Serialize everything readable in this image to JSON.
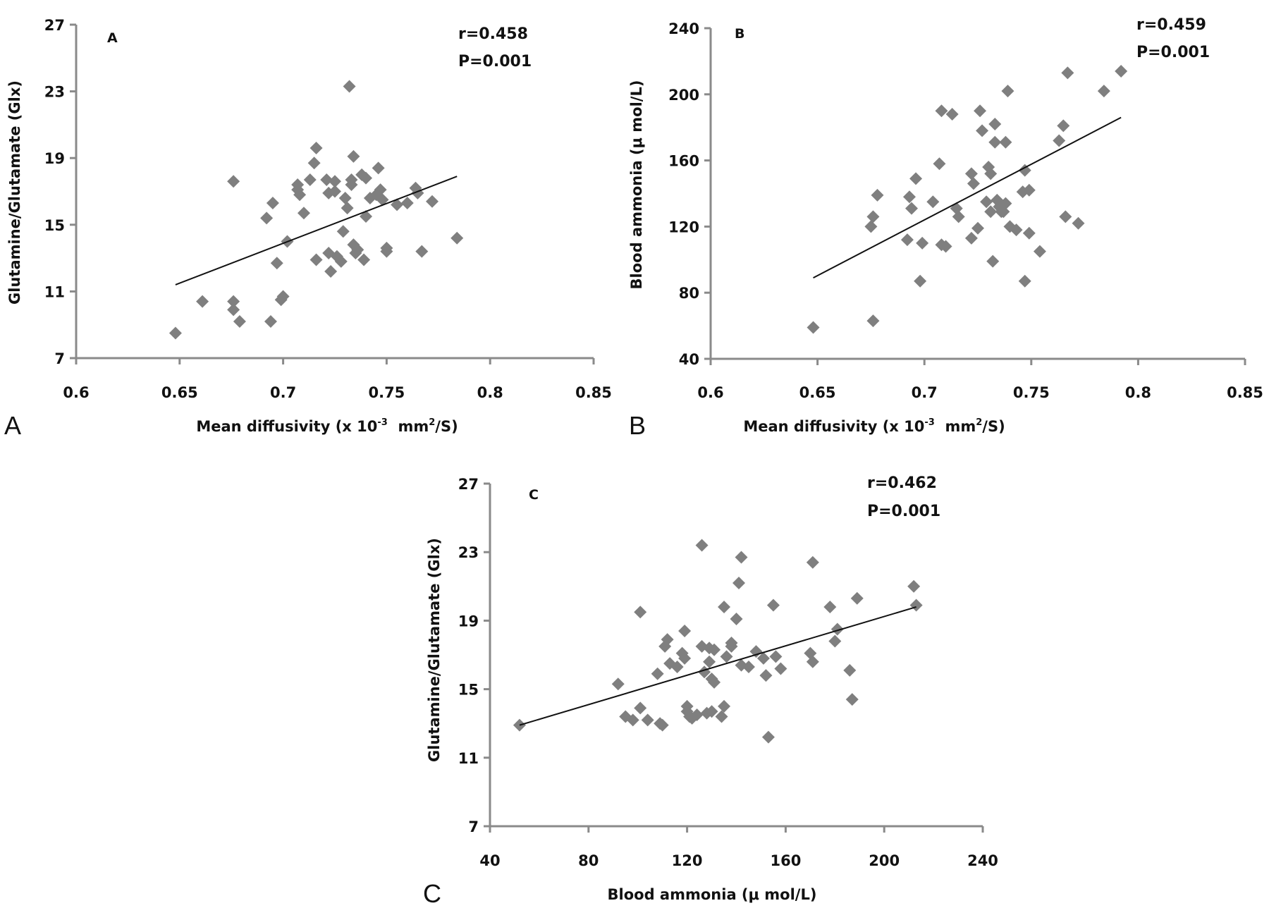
{
  "chart_data": [
    {
      "panel": "A",
      "type": "scatter",
      "inner_label": "A",
      "panel_label": "A",
      "stats": [
        "r=0.458",
        "P=0.001"
      ],
      "xlabel": "Mean diffusivity (x 10^-3 mm^2/S)",
      "xlabel_parts": {
        "base": "Mean diffusivity (x 10",
        "sup1": "-3",
        "mid": "  mm",
        "sup2": "2",
        "end": "/S)"
      },
      "ylabel": "Glutamine/Glutamate (Glx)",
      "xlim": [
        0.6,
        0.85
      ],
      "ylim": [
        7,
        27
      ],
      "xticks": [
        0.6,
        0.65,
        0.7,
        0.75,
        0.8,
        0.85
      ],
      "xtick_labels": [
        "0.6",
        "0.65",
        "0.7",
        "0.75",
        "0.8",
        "0.85"
      ],
      "yticks": [
        7,
        11,
        15,
        19,
        23,
        27
      ],
      "ytick_labels": [
        "7",
        "11",
        "15",
        "19",
        "23",
        "27"
      ],
      "grid": false,
      "trendline": {
        "x": [
          0.648,
          0.784
        ],
        "y": [
          11.4,
          17.9
        ]
      },
      "points": [
        [
          0.648,
          8.5
        ],
        [
          0.661,
          10.4
        ],
        [
          0.676,
          17.6
        ],
        [
          0.676,
          10.4
        ],
        [
          0.676,
          9.9
        ],
        [
          0.679,
          9.2
        ],
        [
          0.692,
          15.4
        ],
        [
          0.695,
          16.3
        ],
        [
          0.694,
          9.2
        ],
        [
          0.697,
          12.7
        ],
        [
          0.699,
          10.5
        ],
        [
          0.7,
          10.7
        ],
        [
          0.702,
          14.0
        ],
        [
          0.707,
          17.4
        ],
        [
          0.707,
          17.1
        ],
        [
          0.708,
          16.8
        ],
        [
          0.71,
          15.7
        ],
        [
          0.713,
          17.7
        ],
        [
          0.715,
          18.7
        ],
        [
          0.716,
          19.6
        ],
        [
          0.716,
          12.9
        ],
        [
          0.721,
          17.7
        ],
        [
          0.722,
          16.9
        ],
        [
          0.723,
          12.2
        ],
        [
          0.722,
          13.3
        ],
        [
          0.725,
          17.0
        ],
        [
          0.725,
          17.6
        ],
        [
          0.726,
          13.1
        ],
        [
          0.728,
          12.8
        ],
        [
          0.729,
          14.6
        ],
        [
          0.73,
          16.6
        ],
        [
          0.731,
          16.0
        ],
        [
          0.732,
          23.3
        ],
        [
          0.733,
          17.4
        ],
        [
          0.733,
          17.7
        ],
        [
          0.734,
          19.1
        ],
        [
          0.734,
          13.8
        ],
        [
          0.735,
          13.3
        ],
        [
          0.736,
          13.5
        ],
        [
          0.738,
          18.0
        ],
        [
          0.739,
          12.9
        ],
        [
          0.74,
          17.8
        ],
        [
          0.74,
          15.5
        ],
        [
          0.742,
          16.6
        ],
        [
          0.745,
          16.8
        ],
        [
          0.746,
          18.4
        ],
        [
          0.747,
          17.1
        ],
        [
          0.748,
          16.5
        ],
        [
          0.75,
          13.6
        ],
        [
          0.75,
          13.4
        ],
        [
          0.755,
          16.2
        ],
        [
          0.76,
          16.3
        ],
        [
          0.764,
          17.2
        ],
        [
          0.765,
          16.9
        ],
        [
          0.767,
          13.4
        ],
        [
          0.772,
          16.4
        ],
        [
          0.784,
          14.2
        ]
      ]
    },
    {
      "panel": "B",
      "type": "scatter",
      "inner_label": "B",
      "panel_label": "B",
      "stats": [
        "r=0.459",
        "P=0.001"
      ],
      "xlabel": "Mean diffusivity (x 10^-3 mm^2/S)",
      "xlabel_parts": {
        "base": "Mean diffusivity (x 10",
        "sup1": "-3",
        "mid": "  mm",
        "sup2": "2",
        "end": "/S)"
      },
      "ylabel": "Blood ammonia (μ mol/L)",
      "xlim": [
        0.6,
        0.85
      ],
      "ylim": [
        40,
        240
      ],
      "xticks": [
        0.6,
        0.65,
        0.7,
        0.75,
        0.8,
        0.85
      ],
      "xtick_labels": [
        "0.6",
        "0.65",
        "0.7",
        "0.75",
        "0.8",
        "0.85"
      ],
      "yticks": [
        40,
        80,
        120,
        160,
        200,
        240
      ],
      "ytick_labels": [
        "40",
        "80",
        "120",
        "160",
        "200",
        "240"
      ],
      "grid": false,
      "trendline": {
        "x": [
          0.648,
          0.792
        ],
        "y": [
          89,
          186
        ]
      },
      "points": [
        [
          0.648,
          59
        ],
        [
          0.676,
          63
        ],
        [
          0.675,
          120
        ],
        [
          0.676,
          126
        ],
        [
          0.678,
          139
        ],
        [
          0.692,
          112
        ],
        [
          0.693,
          138
        ],
        [
          0.694,
          131
        ],
        [
          0.696,
          149
        ],
        [
          0.698,
          87
        ],
        [
          0.699,
          110
        ],
        [
          0.704,
          135
        ],
        [
          0.707,
          158
        ],
        [
          0.708,
          190
        ],
        [
          0.708,
          109
        ],
        [
          0.71,
          108
        ],
        [
          0.713,
          188
        ],
        [
          0.715,
          131
        ],
        [
          0.716,
          126
        ],
        [
          0.722,
          113
        ],
        [
          0.722,
          152
        ],
        [
          0.723,
          146
        ],
        [
          0.725,
          119
        ],
        [
          0.726,
          190
        ],
        [
          0.727,
          178
        ],
        [
          0.729,
          135
        ],
        [
          0.73,
          156
        ],
        [
          0.731,
          152
        ],
        [
          0.731,
          129
        ],
        [
          0.732,
          99
        ],
        [
          0.733,
          182
        ],
        [
          0.733,
          171
        ],
        [
          0.734,
          136
        ],
        [
          0.735,
          132
        ],
        [
          0.736,
          129
        ],
        [
          0.737,
          129
        ],
        [
          0.738,
          171
        ],
        [
          0.738,
          134
        ],
        [
          0.739,
          202
        ],
        [
          0.74,
          120
        ],
        [
          0.743,
          118
        ],
        [
          0.746,
          141
        ],
        [
          0.747,
          154
        ],
        [
          0.747,
          87
        ],
        [
          0.749,
          116
        ],
        [
          0.749,
          142
        ],
        [
          0.754,
          105
        ],
        [
          0.763,
          172
        ],
        [
          0.765,
          181
        ],
        [
          0.766,
          126
        ],
        [
          0.767,
          213
        ],
        [
          0.772,
          122
        ],
        [
          0.784,
          202
        ],
        [
          0.792,
          214
        ]
      ]
    },
    {
      "panel": "C",
      "type": "scatter",
      "inner_label": "C",
      "panel_label": "C",
      "stats": [
        "r=0.462",
        "P=0.001"
      ],
      "xlabel": "Blood ammonia (μ mol/L)",
      "ylabel": "Glutamine/Glutamate (Glx)",
      "xlim": [
        40,
        240
      ],
      "ylim": [
        7,
        27
      ],
      "xticks": [
        40,
        80,
        120,
        160,
        200,
        240
      ],
      "xtick_labels": [
        "40",
        "80",
        "120",
        "160",
        "200",
        "240"
      ],
      "yticks": [
        7,
        11,
        15,
        19,
        23,
        27
      ],
      "ytick_labels": [
        "7",
        "11",
        "15",
        "19",
        "23",
        "27"
      ],
      "grid": false,
      "trendline": {
        "x": [
          52,
          213
        ],
        "y": [
          12.9,
          19.8
        ]
      },
      "points": [
        [
          52,
          12.9
        ],
        [
          92,
          15.3
        ],
        [
          95,
          13.4
        ],
        [
          98,
          13.2
        ],
        [
          101,
          19.5
        ],
        [
          101,
          13.9
        ],
        [
          104,
          13.2
        ],
        [
          108,
          15.9
        ],
        [
          109,
          13.0
        ],
        [
          110,
          12.9
        ],
        [
          111,
          17.5
        ],
        [
          112,
          17.9
        ],
        [
          113,
          16.5
        ],
        [
          116,
          16.3
        ],
        [
          118,
          17.1
        ],
        [
          119,
          18.4
        ],
        [
          119,
          16.8
        ],
        [
          120,
          14.0
        ],
        [
          120,
          13.7
        ],
        [
          121,
          13.4
        ],
        [
          122,
          13.3
        ],
        [
          124,
          13.5
        ],
        [
          126,
          23.4
        ],
        [
          126,
          17.5
        ],
        [
          127,
          16.0
        ],
        [
          128,
          13.6
        ],
        [
          129,
          17.4
        ],
        [
          129,
          16.6
        ],
        [
          130,
          13.7
        ],
        [
          130,
          15.6
        ],
        [
          131,
          15.4
        ],
        [
          131,
          17.3
        ],
        [
          134,
          13.4
        ],
        [
          135,
          14.0
        ],
        [
          135,
          19.8
        ],
        [
          136,
          16.9
        ],
        [
          138,
          17.7
        ],
        [
          138,
          17.5
        ],
        [
          140,
          19.1
        ],
        [
          141,
          21.2
        ],
        [
          142,
          22.7
        ],
        [
          142,
          16.4
        ],
        [
          145,
          16.3
        ],
        [
          148,
          17.2
        ],
        [
          151,
          16.8
        ],
        [
          152,
          15.8
        ],
        [
          153,
          12.2
        ],
        [
          155,
          19.9
        ],
        [
          156,
          16.9
        ],
        [
          158,
          16.2
        ],
        [
          170,
          17.1
        ],
        [
          171,
          16.6
        ],
        [
          171,
          22.4
        ],
        [
          178,
          19.8
        ],
        [
          180,
          17.8
        ],
        [
          181,
          18.5
        ],
        [
          186,
          16.1
        ],
        [
          187,
          14.4
        ],
        [
          189,
          20.3
        ],
        [
          212,
          21.0
        ],
        [
          213,
          19.9
        ]
      ]
    }
  ]
}
